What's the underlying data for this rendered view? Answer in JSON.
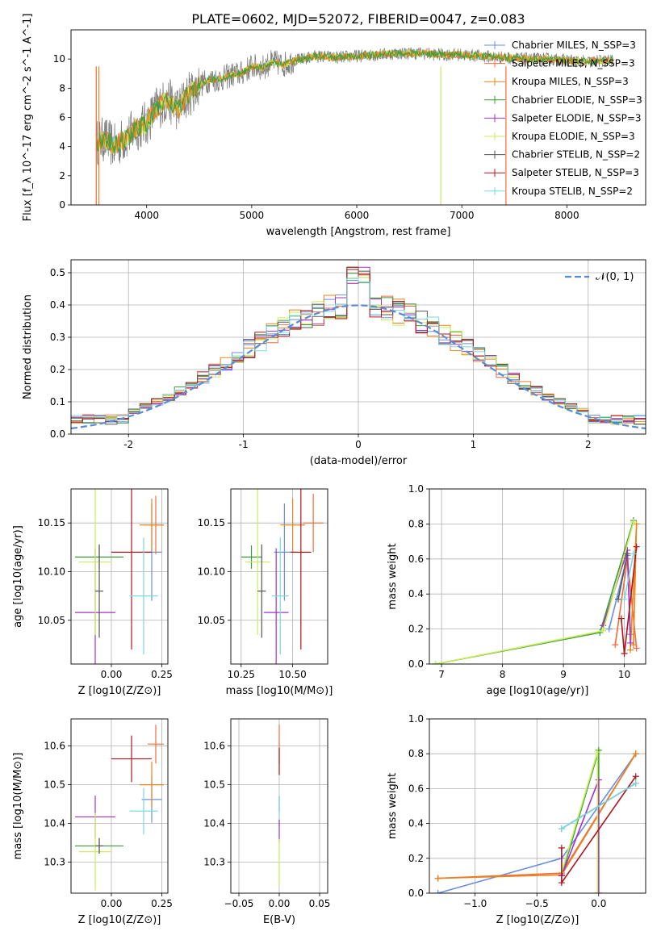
{
  "figure_title": "PLATE=0602, MJD=52072, FIBERID=0047, z=0.083",
  "colors": {
    "chabrier_miles": "#6a8ee6",
    "salpeter_miles": "#f26b3a",
    "kroupa_miles": "#e8841c",
    "chabrier_elodie": "#3d9a3d",
    "salpeter_elodie": "#a431c7",
    "kroupa_elodie": "#c9ee5a",
    "chabrier_stelib": "#555555",
    "salpeter_stelib": "#b0141c",
    "kroupa_stelib": "#7ad8e0",
    "data_gray": "#808080",
    "normal_curve": "#5b8bd6",
    "grid": "#b0b0b0"
  },
  "chart_data": [
    {
      "id": "spectrum",
      "type": "line",
      "title": "PLATE=0602, MJD=52072, FIBERID=0047, z=0.083",
      "xlabel": "wavelength [Angstrom, rest frame]",
      "ylabel": "Flux [f_λ 10^-17 erg cm^-2 s^-1 A^-1]",
      "xlim": [
        3280,
        8750
      ],
      "ylim": [
        0,
        12
      ],
      "xticks": [
        4000,
        5000,
        6000,
        7000,
        8000
      ],
      "yticks": [
        0,
        2,
        4,
        6,
        8,
        10
      ],
      "grid": false,
      "legend_position": "top-right",
      "continuum": {
        "x": [
          3520,
          3600,
          3700,
          3800,
          3900,
          4000,
          4100,
          4200,
          4300,
          4400,
          4500,
          4600,
          4700,
          4800,
          4900,
          5000,
          5100,
          5200,
          5300,
          5400,
          5500,
          5600,
          5800,
          6000,
          6200,
          6400,
          6600,
          6800,
          7000,
          7200,
          7400,
          7600,
          7800,
          8000,
          8200,
          8400
        ],
        "y": [
          4.3,
          4.5,
          4.0,
          4.6,
          5.2,
          5.6,
          6.7,
          7.2,
          6.6,
          7.6,
          8.2,
          8.6,
          8.6,
          8.9,
          9.0,
          9.5,
          9.4,
          9.8,
          9.6,
          9.9,
          10.0,
          10.2,
          10.1,
          10.2,
          10.3,
          10.4,
          10.4,
          10.3,
          10.3,
          10.2,
          10.1,
          10.0,
          10.0,
          9.9,
          9.8,
          9.9
        ]
      },
      "series": [
        {
          "name": "Chabrier MILES, N_SSP=3",
          "color_key": "chabrier_miles"
        },
        {
          "name": "Salpeter MILES, N_SSP=3",
          "color_key": "salpeter_miles"
        },
        {
          "name": "Kroupa MILES, N_SSP=3",
          "color_key": "kroupa_miles"
        },
        {
          "name": "Chabrier ELODIE, N_SSP=3",
          "color_key": "chabrier_elodie"
        },
        {
          "name": "Salpeter ELODIE, N_SSP=3",
          "color_key": "salpeter_elodie"
        },
        {
          "name": "Kroupa ELODIE, N_SSP=3",
          "color_key": "kroupa_elodie"
        },
        {
          "name": "Chabrier STELIB, N_SSP=2",
          "color_key": "chabrier_stelib"
        },
        {
          "name": "Salpeter STELIB, N_SSP=3",
          "color_key": "salpeter_stelib"
        },
        {
          "name": "Kroupa STELIB, N_SSP=2",
          "color_key": "kroupa_stelib"
        }
      ]
    },
    {
      "id": "histogram",
      "type": "bar",
      "xlabel": "(data-model)/error",
      "ylabel": "Normed distribution",
      "xlim": [
        -2.5,
        2.5
      ],
      "ylim": [
        0,
        0.54
      ],
      "xticks": [
        -2,
        -1,
        0,
        1,
        2
      ],
      "yticks": [
        0.0,
        0.1,
        0.2,
        0.3,
        0.4,
        0.5
      ],
      "grid": true,
      "legend_position": "top-right",
      "normal_label": "𝒩(0, 1)",
      "bin_width": 0.1,
      "x_start": -2.5
    },
    {
      "id": "age_vs_Z",
      "type": "scatter",
      "xlabel": "Z [log10(Z/Z⊙)]",
      "ylabel": "age [log10(age/yr)]",
      "xlim": [
        -0.2,
        0.28
      ],
      "ylim": [
        10.005,
        10.185
      ],
      "xticks": [
        -0.0,
        0.25
      ],
      "xtick_labels": [
        "0.00",
        "0.25"
      ],
      "yticks": [
        10.05,
        10.1,
        10.15
      ],
      "ytick_labels": [
        "10.05",
        "10.10",
        "10.15"
      ],
      "grid": true,
      "points": [
        {
          "color_key": "chabrier_miles",
          "x": 0.2,
          "xerr": 0.05,
          "y": 10.12,
          "yerr": 0.05
        },
        {
          "color_key": "salpeter_miles",
          "x": 0.22,
          "xerr": 0.04,
          "y": 10.148,
          "yerr": 0.03
        },
        {
          "color_key": "kroupa_miles",
          "x": 0.2,
          "xerr": 0.06,
          "y": 10.148,
          "yerr": 0.027
        },
        {
          "color_key": "chabrier_elodie",
          "x": -0.06,
          "xerr": 0.12,
          "y": 10.115,
          "yerr": 0.012
        },
        {
          "color_key": "salpeter_elodie",
          "x": -0.08,
          "xerr": 0.1,
          "y": 10.058,
          "yerr": 0.066
        },
        {
          "color_key": "kroupa_elodie",
          "x": -0.08,
          "xerr": 0.08,
          "y": 10.11,
          "yerr": 0.075
        },
        {
          "color_key": "chabrier_stelib",
          "x": -0.06,
          "xerr": 0.02,
          "y": 10.08,
          "yerr": 0.048
        },
        {
          "color_key": "salpeter_stelib",
          "x": 0.1,
          "xerr": 0.1,
          "y": 10.12,
          "yerr": 0.1
        },
        {
          "color_key": "kroupa_stelib",
          "x": 0.16,
          "xerr": 0.07,
          "y": 10.075,
          "yerr": 0.06
        }
      ]
    },
    {
      "id": "age_vs_mass",
      "type": "scatter",
      "xlabel": "mass [log10(M/M⊙)]",
      "ylabel": "",
      "xlim": [
        10.2,
        10.67
      ],
      "ylim": [
        10.005,
        10.185
      ],
      "xticks": [
        10.25,
        10.5
      ],
      "xtick_labels": [
        "10.25",
        "10.50"
      ],
      "yticks": [
        10.05,
        10.1,
        10.15
      ],
      "ytick_labels": [
        "10.05",
        "10.10",
        "10.15"
      ],
      "grid": true,
      "points": [
        {
          "color_key": "chabrier_miles",
          "x": 10.46,
          "xerr": 0.05,
          "y": 10.12,
          "yerr": 0.05
        },
        {
          "color_key": "salpeter_miles",
          "x": 10.6,
          "xerr": 0.05,
          "y": 10.15,
          "yerr": 0.03
        },
        {
          "color_key": "kroupa_miles",
          "x": 10.5,
          "xerr": 0.06,
          "y": 10.148,
          "yerr": 0.027
        },
        {
          "color_key": "chabrier_elodie",
          "x": 10.3,
          "xerr": 0.05,
          "y": 10.115,
          "yerr": 0.012
        },
        {
          "color_key": "salpeter_elodie",
          "x": 10.42,
          "xerr": 0.06,
          "y": 10.058,
          "yerr": 0.066
        },
        {
          "color_key": "kroupa_elodie",
          "x": 10.33,
          "xerr": 0.06,
          "y": 10.11,
          "yerr": 0.075
        },
        {
          "color_key": "chabrier_stelib",
          "x": 10.35,
          "xerr": 0.02,
          "y": 10.08,
          "yerr": 0.048
        },
        {
          "color_key": "salpeter_stelib",
          "x": 10.54,
          "xerr": 0.05,
          "y": 10.12,
          "yerr": 0.1
        },
        {
          "color_key": "kroupa_stelib",
          "x": 10.44,
          "xerr": 0.04,
          "y": 10.075,
          "yerr": 0.06
        }
      ]
    },
    {
      "id": "mass_weight_vs_age",
      "type": "line",
      "xlabel": "age [log10(age/yr)]",
      "ylabel": "mass weight",
      "xlim": [
        6.8,
        10.35
      ],
      "ylim": [
        0,
        1
      ],
      "xticks": [
        7,
        8,
        9,
        10
      ],
      "yticks": [
        0.0,
        0.2,
        0.4,
        0.6,
        0.8,
        1.0
      ],
      "grid": true,
      "series": [
        {
          "color_key": "chabrier_miles",
          "x": [
            9.75,
            10.05,
            10.1
          ],
          "y": [
            0.2,
            0.62,
            0.17
          ]
        },
        {
          "color_key": "salpeter_miles",
          "x": [
            9.85,
            10.05,
            10.2
          ],
          "y": [
            0.11,
            0.6,
            0.09
          ]
        },
        {
          "color_key": "kroupa_miles",
          "x": [
            10.1,
            10.2,
            10.15
          ],
          "y": [
            0.08,
            0.8,
            0.11
          ]
        },
        {
          "color_key": "chabrier_elodie",
          "x": [
            6.9,
            9.6,
            10.15
          ],
          "y": [
            0.0,
            0.18,
            0.82
          ]
        },
        {
          "color_key": "salpeter_elodie",
          "x": [
            9.65,
            10.05,
            10.1
          ],
          "y": [
            0.22,
            0.65,
            0.12
          ]
        },
        {
          "color_key": "kroupa_elodie",
          "x": [
            6.9,
            9.65,
            10.15
          ],
          "y": [
            0.0,
            0.19,
            0.81
          ]
        },
        {
          "color_key": "chabrier_stelib",
          "x": [
            9.9,
            10.05
          ],
          "y": [
            0.37,
            0.63
          ]
        },
        {
          "color_key": "salpeter_stelib",
          "x": [
            9.95,
            10.0,
            10.2
          ],
          "y": [
            0.26,
            0.06,
            0.67
          ]
        },
        {
          "color_key": "kroupa_stelib",
          "x": [
            10.0,
            10.15
          ],
          "y": [
            0.37,
            0.63
          ]
        }
      ]
    },
    {
      "id": "mass_vs_Z",
      "type": "scatter",
      "xlabel": "Z [log10(Z/Z⊙)]",
      "ylabel": "mass [log10(M/M⊙)]",
      "xlim": [
        -0.2,
        0.28
      ],
      "ylim": [
        10.22,
        10.67
      ],
      "xticks": [
        -0.0,
        0.25
      ],
      "xtick_labels": [
        "0.00",
        "0.25"
      ],
      "yticks": [
        10.3,
        10.4,
        10.5,
        10.6
      ],
      "ytick_labels": [
        "10.3",
        "10.4",
        "10.5",
        "10.6"
      ],
      "grid": true,
      "points": [
        {
          "color_key": "chabrier_miles",
          "x": 0.2,
          "xerr": 0.05,
          "y": 10.462,
          "yerr": 0.06
        },
        {
          "color_key": "salpeter_miles",
          "x": 0.22,
          "xerr": 0.04,
          "y": 10.605,
          "yerr": 0.05
        },
        {
          "color_key": "kroupa_miles",
          "x": 0.2,
          "xerr": 0.06,
          "y": 10.5,
          "yerr": 0.06
        },
        {
          "color_key": "chabrier_elodie",
          "x": -0.06,
          "xerr": 0.12,
          "y": 10.342,
          "yerr": 0.02
        },
        {
          "color_key": "salpeter_elodie",
          "x": -0.08,
          "xerr": 0.1,
          "y": 10.417,
          "yerr": 0.055
        },
        {
          "color_key": "kroupa_elodie",
          "x": -0.08,
          "xerr": 0.08,
          "y": 10.327,
          "yerr": 0.1
        },
        {
          "color_key": "chabrier_stelib",
          "x": -0.06,
          "xerr": 0.02,
          "y": 10.342,
          "yerr": 0.02
        },
        {
          "color_key": "salpeter_stelib",
          "x": 0.1,
          "xerr": 0.1,
          "y": 10.567,
          "yerr": 0.06
        },
        {
          "color_key": "kroupa_stelib",
          "x": 0.16,
          "xerr": 0.07,
          "y": 10.432,
          "yerr": 0.06
        }
      ]
    },
    {
      "id": "mass_vs_ebv",
      "type": "scatter",
      "xlabel": "E(B-V)",
      "ylabel": "",
      "xlim": [
        -0.06,
        0.06
      ],
      "ylim": [
        10.22,
        10.67
      ],
      "xticks": [
        -0.05,
        0.0,
        0.05
      ],
      "xtick_labels": [
        "−0.05",
        "0.00",
        "0.05"
      ],
      "yticks": [
        10.3,
        10.4,
        10.5,
        10.6
      ],
      "ytick_labels": [
        "10.3",
        "10.4",
        "10.5",
        "10.6"
      ],
      "grid": true,
      "points": [
        {
          "color_key": "salpeter_miles",
          "x": 0.0,
          "xerr": 0.0,
          "y": 10.605,
          "yerr": 0.05
        },
        {
          "color_key": "salpeter_stelib",
          "x": 0.0,
          "xerr": 0.0,
          "y": 10.56,
          "yerr": 0.035
        },
        {
          "color_key": "chabrier_stelib",
          "x": 0.0,
          "xerr": 0.0,
          "y": 10.45,
          "yerr": 0.02
        },
        {
          "color_key": "kroupa_stelib",
          "x": 0.0,
          "xerr": 0.0,
          "y": 10.43,
          "yerr": 0.04
        },
        {
          "color_key": "salpeter_elodie",
          "x": 0.0,
          "xerr": 0.0,
          "y": 10.38,
          "yerr": 0.03
        },
        {
          "color_key": "kroupa_elodie",
          "x": 0.0,
          "xerr": 0.0,
          "y": 10.3,
          "yerr": 0.06
        }
      ]
    },
    {
      "id": "mass_weight_vs_Z",
      "type": "line",
      "xlabel": "Z [log10(Z/Z⊙)]",
      "ylabel": "mass weight",
      "xlim": [
        -1.37,
        0.38
      ],
      "ylim": [
        0,
        1
      ],
      "xticks": [
        -1.0,
        -0.5,
        0.0
      ],
      "xtick_labels": [
        "−1.0",
        "−0.5",
        "0.0"
      ],
      "yticks": [
        0.0,
        0.2,
        0.4,
        0.6,
        0.8,
        1.0
      ],
      "grid": true,
      "series": [
        {
          "color_key": "chabrier_miles",
          "x": [
            -1.3,
            -0.3,
            0.3
          ],
          "y": [
            0.0,
            0.2,
            0.8
          ]
        },
        {
          "color_key": "salpeter_miles",
          "x": [
            -1.3,
            -0.3,
            0.3
          ],
          "y": [
            0.085,
            0.115,
            0.8
          ]
        },
        {
          "color_key": "kroupa_miles",
          "x": [
            -1.3,
            -0.3,
            0.3
          ],
          "y": [
            0.085,
            0.105,
            0.8
          ]
        },
        {
          "color_key": "chabrier_elodie",
          "x": [
            -0.3,
            0.0,
            0.0
          ],
          "y": [
            0.1,
            0.82,
            0.0
          ]
        },
        {
          "color_key": "salpeter_elodie",
          "x": [
            -0.3,
            0.0,
            0.0
          ],
          "y": [
            0.1,
            0.65,
            0.0
          ]
        },
        {
          "color_key": "kroupa_elodie",
          "x": [
            -0.3,
            -0.01,
            -0.01
          ],
          "y": [
            0.12,
            0.81,
            0.0
          ]
        },
        {
          "color_key": "chabrier_stelib",
          "x": [
            -0.3,
            0.3
          ],
          "y": [
            0.37,
            0.63
          ]
        },
        {
          "color_key": "salpeter_stelib",
          "x": [
            -0.3,
            -0.3,
            0.3
          ],
          "y": [
            0.26,
            0.06,
            0.67
          ]
        },
        {
          "color_key": "kroupa_stelib",
          "x": [
            -0.3,
            0.3
          ],
          "y": [
            0.37,
            0.63
          ]
        }
      ]
    }
  ]
}
